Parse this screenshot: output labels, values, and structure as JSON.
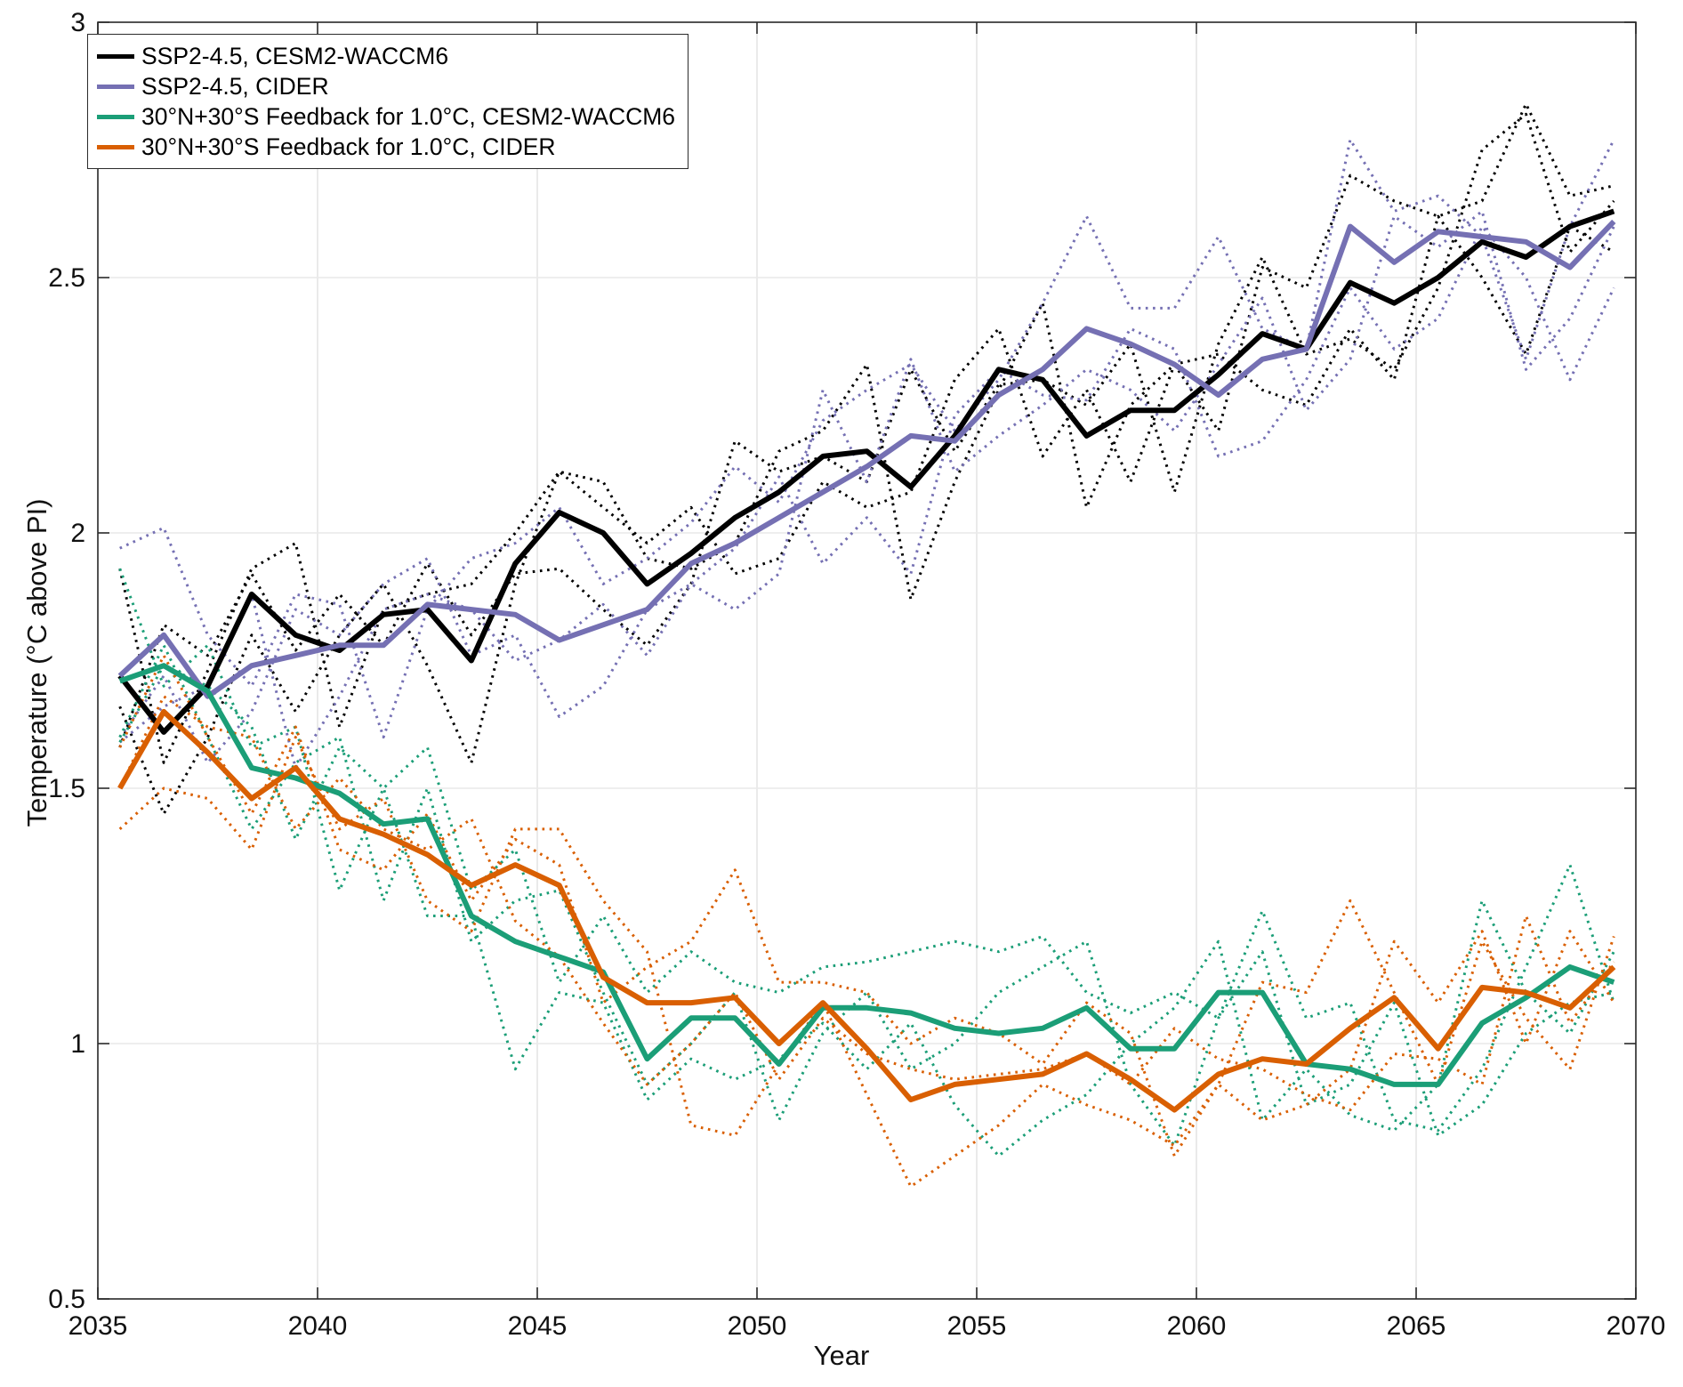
{
  "chart_data": {
    "type": "line",
    "title": "",
    "xlabel": "Year",
    "ylabel": "Temperature (°C above PI)",
    "xlim": [
      2035,
      2070
    ],
    "ylim": [
      0.5,
      3
    ],
    "xticks": [
      2035,
      2040,
      2045,
      2050,
      2055,
      2060,
      2065,
      2070
    ],
    "xtick_labels": [
      "2035",
      "2040",
      "2045",
      "2050",
      "2055",
      "2060",
      "2065",
      "2070"
    ],
    "yticks": [
      0.5,
      1,
      1.5,
      2,
      2.5,
      3
    ],
    "ytick_labels": [
      "0.5",
      "1",
      "1.5",
      "2",
      "2.5",
      "3"
    ],
    "grid": true,
    "legend_position": "top-left",
    "x": [
      2035.5,
      2036.5,
      2037.5,
      2038.5,
      2039.5,
      2040.5,
      2041.5,
      2042.5,
      2043.5,
      2044.5,
      2045.5,
      2046.5,
      2047.5,
      2048.5,
      2049.5,
      2050.5,
      2051.5,
      2052.5,
      2053.5,
      2054.5,
      2055.5,
      2056.5,
      2057.5,
      2058.5,
      2059.5,
      2060.5,
      2061.5,
      2062.5,
      2063.5,
      2064.5,
      2065.5,
      2066.5,
      2067.5,
      2068.5,
      2069.5
    ],
    "legend": {
      "entries": [
        {
          "label": "SSP2-4.5, CESM2-WACCM6",
          "color": "#000000"
        },
        {
          "label": "SSP2-4.5, CIDER",
          "color": "#7570b3"
        },
        {
          "label": "30°N+30°S Feedback for 1.0°C, CESM2-WACCM6",
          "color": "#1b9e77"
        },
        {
          "label": "30°N+30°S Feedback for 1.0°C, CIDER",
          "color": "#d95f02"
        }
      ]
    },
    "series": [
      {
        "name": "SSP2-4.5, CESM2-WACCM6 (ensemble mean)",
        "color": "#000000",
        "style": "solid",
        "values": [
          1.72,
          1.61,
          1.7,
          1.88,
          1.8,
          1.77,
          1.84,
          1.85,
          1.75,
          1.94,
          2.04,
          2.0,
          1.9,
          1.96,
          2.03,
          2.08,
          2.15,
          2.16,
          2.09,
          2.19,
          2.32,
          2.3,
          2.19,
          2.24,
          2.24,
          2.31,
          2.39,
          2.36,
          2.49,
          2.45,
          2.5,
          2.57,
          2.54,
          2.6,
          2.63
        ]
      },
      {
        "name": "SSP2-4.5, CIDER (ensemble mean)",
        "color": "#7570b3",
        "style": "solid",
        "values": [
          1.72,
          1.8,
          1.68,
          1.74,
          1.76,
          1.78,
          1.78,
          1.86,
          1.85,
          1.84,
          1.79,
          1.82,
          1.85,
          1.94,
          1.98,
          2.03,
          2.08,
          2.13,
          2.19,
          2.18,
          2.27,
          2.32,
          2.4,
          2.37,
          2.33,
          2.27,
          2.34,
          2.36,
          2.6,
          2.53,
          2.59,
          2.58,
          2.57,
          2.52,
          2.61
        ]
      },
      {
        "name": "30N+30S Feedback for 1.0C, CESM2-WACCM6 (ensemble mean)",
        "color": "#1b9e77",
        "style": "solid",
        "values": [
          1.71,
          1.74,
          1.69,
          1.54,
          1.52,
          1.49,
          1.43,
          1.44,
          1.25,
          1.2,
          1.17,
          1.14,
          0.97,
          1.05,
          1.05,
          0.96,
          1.07,
          1.07,
          1.06,
          1.03,
          1.02,
          1.03,
          1.07,
          0.99,
          0.99,
          1.1,
          1.1,
          0.96,
          0.95,
          0.92,
          0.92,
          1.04,
          1.09,
          1.15,
          1.12
        ]
      },
      {
        "name": "30N+30S Feedback for 1.0C, CIDER (ensemble mean)",
        "color": "#d95f02",
        "style": "solid",
        "values": [
          1.5,
          1.65,
          1.57,
          1.48,
          1.54,
          1.44,
          1.41,
          1.37,
          1.31,
          1.35,
          1.31,
          1.13,
          1.08,
          1.08,
          1.09,
          1.0,
          1.08,
          0.99,
          0.89,
          0.92,
          0.93,
          0.94,
          0.98,
          0.93,
          0.87,
          0.94,
          0.97,
          0.96,
          1.03,
          1.09,
          0.99,
          1.11,
          1.1,
          1.07,
          1.15
        ]
      }
    ],
    "members": [
      {
        "name": "SSP2-4.5 CESM2-WACCM6 member 1",
        "color": "#000000",
        "style": "dotted",
        "values": [
          1.93,
          1.55,
          1.73,
          1.93,
          1.98,
          1.62,
          1.85,
          1.88,
          1.9,
          2.0,
          2.12,
          2.1,
          1.95,
          1.93,
          1.98,
          2.16,
          2.2,
          2.33,
          1.87,
          2.1,
          2.28,
          2.45,
          2.05,
          2.25,
          2.33,
          2.2,
          2.52,
          2.48,
          2.7,
          2.65,
          2.62,
          2.65,
          2.84,
          2.66,
          2.68
        ]
      },
      {
        "name": "SSP2-4.5 CESM2-WACCM6 member 2",
        "color": "#000000",
        "style": "dotted",
        "values": [
          1.66,
          1.45,
          1.6,
          1.8,
          1.65,
          1.8,
          1.9,
          1.74,
          1.55,
          1.9,
          2.12,
          2.05,
          1.98,
          2.05,
          1.92,
          1.95,
          2.1,
          2.05,
          2.08,
          2.3,
          2.4,
          2.15,
          2.28,
          2.1,
          2.33,
          2.35,
          2.28,
          2.25,
          2.4,
          2.3,
          2.62,
          2.5,
          2.35,
          2.6,
          2.55
        ]
      },
      {
        "name": "SSP2-4.5 CESM2-WACCM6 member 3",
        "color": "#000000",
        "style": "dotted",
        "values": [
          1.58,
          1.82,
          1.76,
          1.92,
          1.77,
          1.88,
          1.78,
          1.94,
          1.8,
          1.92,
          1.93,
          1.85,
          1.78,
          1.9,
          2.18,
          2.12,
          2.15,
          2.1,
          2.32,
          2.16,
          2.29,
          2.3,
          2.25,
          2.37,
          2.08,
          2.37,
          2.54,
          2.35,
          2.38,
          2.32,
          2.48,
          2.75,
          2.82,
          2.55,
          2.65
        ]
      },
      {
        "name": "SSP2-4.5 CIDER member 1",
        "color": "#7570b3",
        "style": "dotted",
        "values": [
          1.97,
          2.01,
          1.8,
          1.7,
          1.88,
          1.86,
          1.6,
          1.85,
          1.95,
          1.98,
          2.05,
          1.9,
          1.95,
          2.02,
          2.13,
          2.06,
          2.22,
          2.28,
          2.33,
          2.2,
          2.3,
          2.45,
          2.62,
          2.44,
          2.44,
          2.58,
          2.4,
          2.36,
          2.77,
          2.63,
          2.66,
          2.58,
          2.34,
          2.6,
          2.77
        ]
      },
      {
        "name": "SSP2-4.5 CIDER member 2",
        "color": "#7570b3",
        "style": "dotted",
        "values": [
          1.6,
          1.72,
          1.55,
          1.65,
          1.85,
          1.8,
          1.9,
          1.95,
          1.76,
          1.8,
          1.64,
          1.7,
          1.85,
          1.9,
          1.85,
          1.92,
          2.28,
          2.1,
          2.34,
          2.12,
          2.19,
          2.25,
          2.32,
          2.28,
          2.2,
          2.33,
          2.46,
          2.24,
          2.34,
          2.62,
          2.56,
          2.63,
          2.32,
          2.42,
          2.6
        ]
      },
      {
        "name": "SSP2-4.5 CIDER member 3",
        "color": "#7570b3",
        "style": "dotted",
        "values": [
          1.59,
          1.66,
          1.7,
          1.88,
          1.54,
          1.68,
          1.85,
          1.88,
          1.85,
          1.75,
          1.79,
          1.86,
          1.76,
          1.9,
          1.97,
          2.11,
          1.94,
          2.03,
          1.92,
          2.23,
          2.32,
          2.27,
          2.26,
          2.4,
          2.36,
          2.15,
          2.18,
          2.3,
          2.48,
          2.36,
          2.42,
          2.6,
          2.5,
          2.3,
          2.48
        ]
      },
      {
        "name": "Feedback CESM2-WACCM6 member 1",
        "color": "#1b9e77",
        "style": "dotted",
        "values": [
          1.93,
          1.7,
          1.78,
          1.58,
          1.62,
          1.3,
          1.5,
          1.58,
          1.3,
          1.38,
          1.12,
          1.25,
          1.1,
          1.18,
          1.12,
          1.1,
          1.15,
          1.16,
          1.18,
          1.2,
          1.18,
          1.21,
          1.1,
          1.06,
          1.1,
          1.05,
          1.26,
          1.05,
          1.08,
          0.85,
          0.83,
          0.95,
          1.15,
          1.35,
          1.08
        ]
      },
      {
        "name": "Feedback CESM2-WACCM6 member 2",
        "color": "#1b9e77",
        "style": "dotted",
        "values": [
          1.6,
          1.78,
          1.6,
          1.42,
          1.55,
          1.6,
          1.28,
          1.5,
          1.2,
          1.28,
          1.3,
          1.1,
          0.92,
          1.0,
          1.1,
          0.85,
          1.02,
          1.1,
          0.95,
          1.0,
          1.1,
          1.15,
          1.2,
          0.92,
          0.8,
          1.05,
          1.18,
          0.88,
          0.92,
          1.08,
          0.82,
          0.88,
          1.02,
          1.08,
          1.1
        ]
      },
      {
        "name": "Feedback CESM2-WACCM6 member 3",
        "color": "#1b9e77",
        "style": "dotted",
        "values": [
          1.59,
          1.74,
          1.7,
          1.62,
          1.4,
          1.58,
          1.5,
          1.25,
          1.25,
          0.95,
          1.1,
          1.08,
          0.89,
          0.97,
          0.93,
          0.97,
          1.04,
          0.95,
          1.04,
          0.88,
          0.78,
          0.85,
          0.9,
          1.0,
          1.07,
          1.2,
          0.85,
          0.95,
          0.86,
          0.83,
          0.92,
          1.28,
          1.1,
          1.02,
          1.18
        ]
      },
      {
        "name": "Feedback CIDER member 1",
        "color": "#d95f02",
        "style": "dotted",
        "values": [
          1.42,
          1.5,
          1.48,
          1.38,
          1.6,
          1.42,
          1.48,
          1.28,
          1.22,
          1.42,
          1.42,
          1.28,
          1.18,
          0.84,
          0.82,
          0.96,
          1.08,
          0.9,
          0.72,
          0.78,
          0.84,
          0.92,
          0.88,
          0.85,
          0.8,
          0.92,
          0.85,
          0.88,
          0.95,
          1.2,
          1.08,
          1.22,
          1.0,
          1.22,
          1.08
        ]
      },
      {
        "name": "Feedback CIDER member 2",
        "color": "#d95f02",
        "style": "dotted",
        "values": [
          1.58,
          1.76,
          1.6,
          1.45,
          1.62,
          1.38,
          1.34,
          1.45,
          1.28,
          1.4,
          1.35,
          1.08,
          1.15,
          1.2,
          1.34,
          1.12,
          1.12,
          1.1,
          1.0,
          1.05,
          1.02,
          0.96,
          1.08,
          1.02,
          0.78,
          0.92,
          1.12,
          1.1,
          1.28,
          1.1,
          0.92,
          1.2,
          1.05,
          0.95,
          1.21
        ]
      },
      {
        "name": "Feedback CIDER member 3",
        "color": "#d95f02",
        "style": "dotted",
        "values": [
          1.5,
          1.68,
          1.62,
          1.6,
          1.42,
          1.52,
          1.42,
          1.38,
          1.44,
          1.24,
          1.17,
          1.04,
          0.92,
          1.0,
          1.1,
          0.93,
          1.05,
          0.98,
          0.95,
          0.93,
          0.94,
          0.95,
          0.98,
          0.92,
          1.03,
          0.97,
          0.95,
          0.9,
          0.87,
          0.98,
          0.97,
          0.92,
          1.25,
          1.04,
          1.16
        ]
      }
    ]
  }
}
